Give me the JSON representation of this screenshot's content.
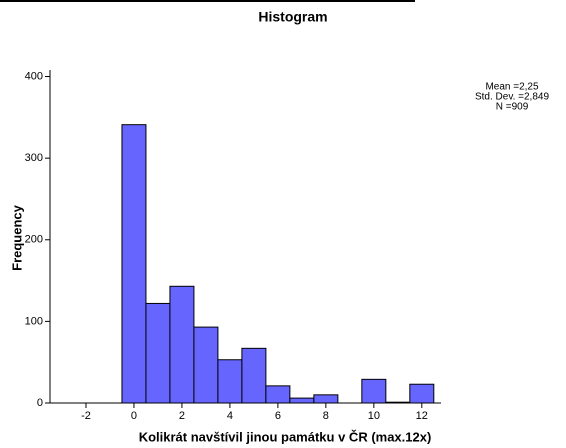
{
  "chart_data": {
    "type": "histogram",
    "title": "Histogram",
    "x_label": "Kolikrát navštívil jinou památku v ČR (max.12x)",
    "y_label": "Frequency",
    "stats": [
      "Mean =2,25",
      "Std. Dev. =2,849",
      "N =909"
    ],
    "bins": [
      -0.5,
      0.5,
      1.5,
      2.5,
      3.5,
      4.5,
      5.5,
      6.5,
      7.5,
      8.5,
      9.5,
      10.5,
      11.5,
      12.5
    ],
    "values": [
      341,
      122,
      143,
      93,
      53,
      67,
      21,
      6,
      10,
      0,
      29,
      1,
      23
    ],
    "color": "#6666ff",
    "xlim": [
      -3.5,
      12.8
    ],
    "xticks": [
      -2,
      0,
      2,
      4,
      6,
      8,
      10,
      12
    ],
    "ylim": [
      0,
      408
    ],
    "yticks": [
      0,
      100,
      200,
      300,
      400
    ]
  }
}
